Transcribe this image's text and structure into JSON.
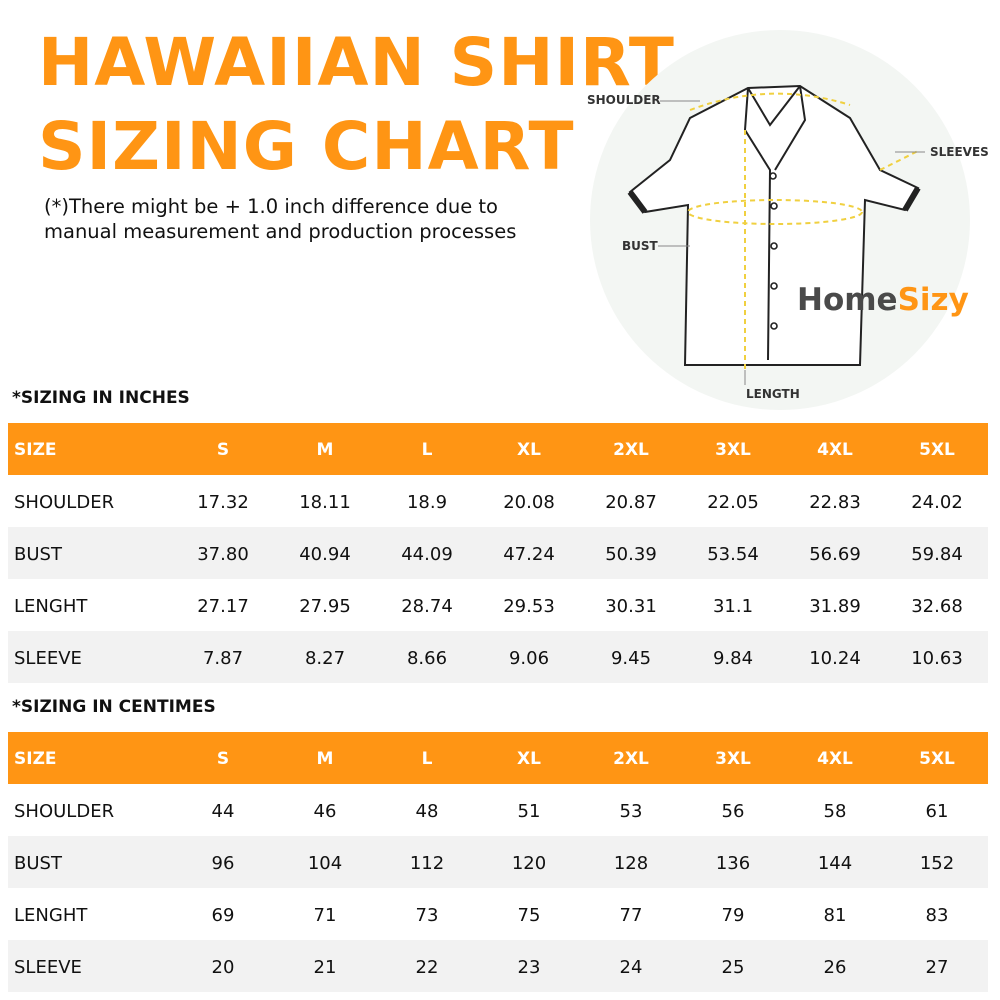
{
  "header": {
    "title_lines": [
      "HAWAIIAN SHIRT",
      "SIZING CHART"
    ],
    "note_lines": [
      "(*)There might be + 1.0 inch difference due to",
      "manual measurement and production processes"
    ]
  },
  "illustration": {
    "labels": {
      "shoulder": "SHOULDER",
      "sleeves": "SLEEVES",
      "bust": "BUST",
      "length": "LENGTH"
    },
    "logo": {
      "part1": "Home",
      "part2": "Sizy"
    }
  },
  "tables": [
    {
      "label": "*SIZING IN INCHES",
      "header": [
        "SIZE",
        "S",
        "M",
        "L",
        "XL",
        "2XL",
        "3XL",
        "4XL",
        "5XL"
      ],
      "rows": [
        [
          "SHOULDER",
          "17.32",
          "18.11",
          "18.9",
          "20.08",
          "20.87",
          "22.05",
          "22.83",
          "24.02"
        ],
        [
          "BUST",
          "37.80",
          "40.94",
          "44.09",
          "47.24",
          "50.39",
          "53.54",
          "56.69",
          "59.84"
        ],
        [
          "LENGHT",
          "27.17",
          "27.95",
          "28.74",
          "29.53",
          "30.31",
          "31.1",
          "31.89",
          "32.68"
        ],
        [
          "SLEEVE",
          "7.87",
          "8.27",
          "8.66",
          "9.06",
          "9.45",
          "9.84",
          "10.24",
          "10.63"
        ]
      ]
    },
    {
      "label": "*SIZING IN CENTIMES",
      "header": [
        "SIZE",
        "S",
        "M",
        "L",
        "XL",
        "2XL",
        "3XL",
        "4XL",
        "5XL"
      ],
      "rows": [
        [
          "SHOULDER",
          "44",
          "46",
          "48",
          "51",
          "53",
          "56",
          "58",
          "61"
        ],
        [
          "BUST",
          "96",
          "104",
          "112",
          "120",
          "128",
          "136",
          "144",
          "152"
        ],
        [
          "LENGHT",
          "69",
          "71",
          "73",
          "75",
          "77",
          "79",
          "81",
          "83"
        ],
        [
          "SLEEVE",
          "20",
          "21",
          "22",
          "23",
          "24",
          "25",
          "26",
          "27"
        ]
      ]
    }
  ]
}
